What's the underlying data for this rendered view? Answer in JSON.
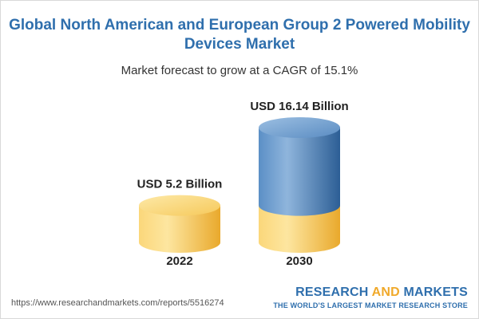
{
  "title_line1": "Global North American and European Group 2 Powered Mobility",
  "title_line2": "Devices Market",
  "subtitle": "Market forecast to grow at a CAGR of 15.1%",
  "chart_data": {
    "type": "bar",
    "style": "3d-cylinder",
    "categories": [
      "2022",
      "2030"
    ],
    "values": [
      5.2,
      16.14
    ],
    "data_labels": [
      "USD 5.2 Billion",
      "USD 16.14 Billion"
    ],
    "unit": "USD Billion",
    "xlabel": "",
    "ylabel": "",
    "colors": {
      "base": "#f4c24e",
      "base_light": "#fde6a0",
      "base_dark": "#e9a92c",
      "growth": "#3f78b4",
      "growth_light": "#8fb5dc",
      "growth_dark": "#2c5e95"
    }
  },
  "footer": {
    "url": "https://www.researchandmarkets.com/reports/5516274",
    "brand_part1": "RESEARCH ",
    "brand_part2": "AND",
    "brand_part3": " MARKETS",
    "brand_tagline": "THE WORLD'S LARGEST MARKET RESEARCH STORE"
  }
}
